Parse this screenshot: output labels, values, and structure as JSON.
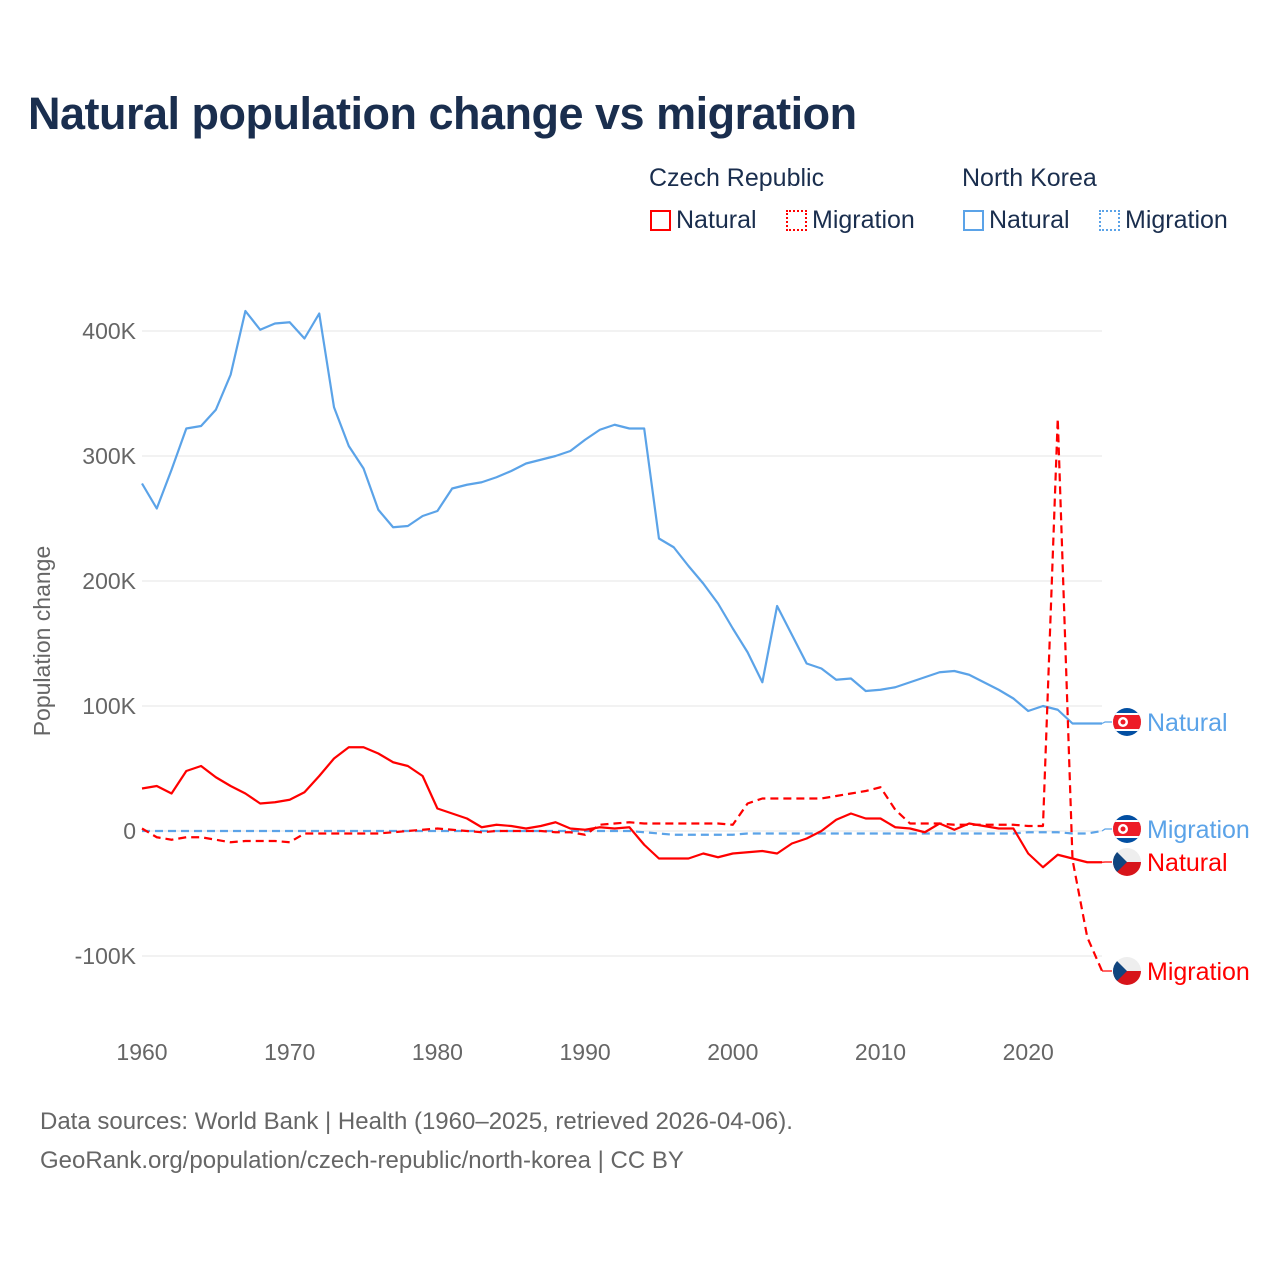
{
  "title": "Natural population change vs migration",
  "legend": {
    "groups": [
      {
        "name": "Czech Republic",
        "items": [
          {
            "label": "Natural",
            "color": "#ff0000",
            "style": "solid"
          },
          {
            "label": "Migration",
            "color": "#ff0000",
            "style": "dotted"
          }
        ]
      },
      {
        "name": "North Korea",
        "items": [
          {
            "label": "Natural",
            "color": "#5ba3e8",
            "style": "solid"
          },
          {
            "label": "Migration",
            "color": "#5ba3e8",
            "style": "dotted"
          }
        ]
      }
    ]
  },
  "source": {
    "line1": "Data sources: World Bank | Health (1960–2025, retrieved 2026-04-06).",
    "line2": "GeoRank.org/population/czech-republic/north-korea | CC BY"
  },
  "chart_data": {
    "type": "line",
    "title": "Natural population change vs migration",
    "xlabel": "",
    "ylabel": "Population change",
    "xlim": [
      1960,
      2025
    ],
    "ylim": [
      -150000,
      420000
    ],
    "xticks": [
      1960,
      1970,
      1980,
      1990,
      2000,
      2010,
      2020
    ],
    "yticks": [
      -100000,
      0,
      100000,
      200000,
      300000,
      400000
    ],
    "ytick_labels": [
      "-100K",
      "0",
      "100K",
      "200K",
      "300K",
      "400K"
    ],
    "grid": true,
    "series": [
      {
        "name": "North Korea Natural",
        "label": "Natural",
        "country": "North Korea",
        "color": "#5ba3e8",
        "dash": false,
        "start": 1960,
        "values": [
          278,
          258,
          289,
          322,
          324,
          337,
          365,
          416,
          401,
          406,
          407,
          394,
          414,
          339,
          308,
          290,
          257,
          243,
          244,
          252,
          256,
          274,
          277,
          279,
          283,
          288,
          294,
          297,
          300,
          304,
          313,
          321,
          325,
          322,
          322,
          234,
          227,
          212,
          198,
          182,
          162,
          143,
          119,
          180,
          157,
          134,
          130,
          121,
          122,
          112,
          113,
          115,
          119,
          123,
          127,
          128,
          125,
          119,
          113,
          106,
          96,
          100,
          97,
          86,
          86,
          86
        ]
      },
      {
        "name": "North Korea Migration",
        "label": "Migration",
        "country": "North Korea",
        "color": "#5ba3e8",
        "dash": true,
        "start": 1960,
        "values": [
          0,
          0,
          0,
          0,
          0,
          0,
          0,
          0,
          0,
          0,
          0,
          0,
          0,
          0,
          0,
          0,
          0,
          0,
          0,
          0,
          0,
          0,
          0,
          0,
          0,
          0,
          0,
          0,
          0,
          0,
          0,
          0,
          0,
          0,
          -1,
          -2,
          -3,
          -3,
          -3,
          -3,
          -3,
          -2,
          -2,
          -2,
          -2,
          -2,
          -2,
          -2,
          -2,
          -2,
          -2,
          -2,
          -2,
          -2,
          -2,
          -2,
          -2,
          -2,
          -2,
          -2,
          -1,
          -1,
          -1,
          -2,
          -2,
          0
        ]
      },
      {
        "name": "Czech Republic Natural",
        "label": "Natural",
        "country": "Czech Republic",
        "color": "#ff0000",
        "dash": false,
        "start": 1960,
        "values": [
          34,
          36,
          30,
          48,
          52,
          43,
          36,
          30,
          22,
          23,
          25,
          31,
          44,
          58,
          67,
          67,
          62,
          55,
          52,
          44,
          18,
          14,
          10,
          3,
          5,
          4,
          2,
          4,
          7,
          2,
          1,
          3,
          2,
          3,
          -11,
          -22,
          -22,
          -22,
          -18,
          -21,
          -18,
          -17,
          -16,
          -18,
          -10,
          -6,
          0,
          9,
          14,
          10,
          10,
          3,
          2,
          -1,
          6,
          1,
          6,
          4,
          2,
          2,
          -18,
          -29,
          -19,
          -22,
          -25,
          -25
        ]
      },
      {
        "name": "Czech Republic Migration",
        "label": "Migration",
        "country": "Czech Republic",
        "color": "#ff0000",
        "dash": true,
        "start": 1960,
        "values": [
          2,
          -5,
          -7,
          -5,
          -5,
          -7,
          -9,
          -8,
          -8,
          -8,
          -9,
          -2,
          -2,
          -2,
          -2,
          -2,
          -2,
          -1,
          0,
          1,
          2,
          1,
          0,
          -1,
          0,
          0,
          0,
          0,
          -1,
          -1,
          -3,
          5,
          6,
          7,
          6,
          6,
          6,
          6,
          6,
          6,
          5,
          22,
          26,
          26,
          26,
          26,
          26,
          28,
          30,
          32,
          35,
          17,
          6,
          6,
          6,
          5,
          5,
          5,
          5,
          5,
          4,
          4,
          330,
          -23,
          -85,
          -112
        ]
      }
    ],
    "value_unit": "thousands"
  }
}
